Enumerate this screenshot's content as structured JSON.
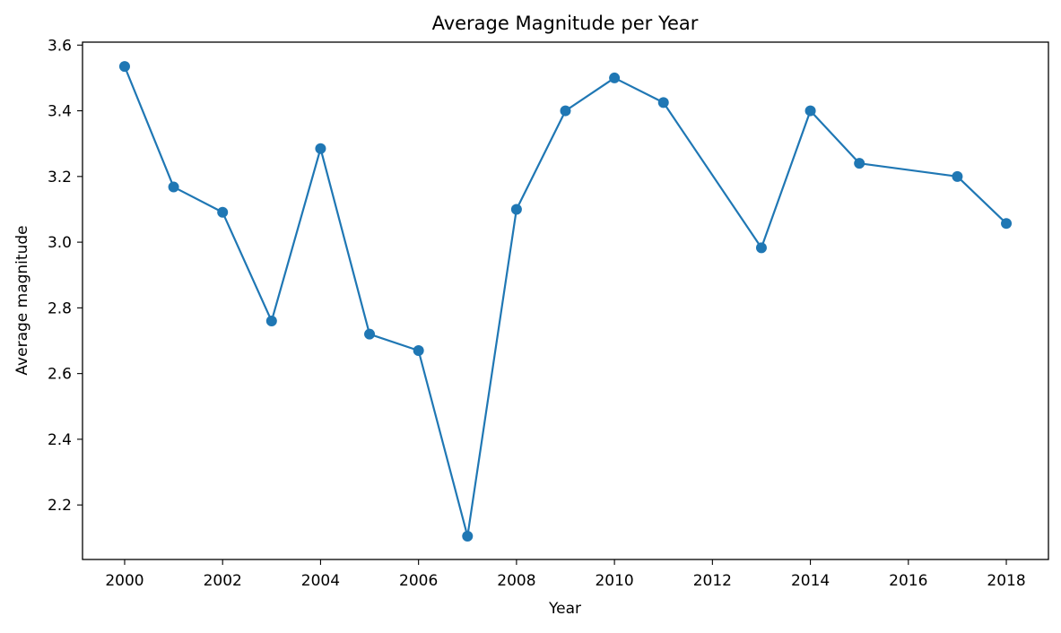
{
  "chart_data": {
    "type": "line",
    "title": "Average Magnitude per Year",
    "xlabel": "Year",
    "ylabel": "Average magnitude",
    "xlim": [
      1999.14,
      2018.86
    ],
    "ylim": [
      2.034,
      3.609
    ],
    "x_ticks": [
      2000,
      2002,
      2004,
      2006,
      2008,
      2010,
      2012,
      2014,
      2016,
      2018
    ],
    "y_ticks": [
      2.2,
      2.4,
      2.6,
      2.8,
      3.0,
      3.2,
      3.4,
      3.6
    ],
    "grid": false,
    "legend": "none",
    "series": [
      {
        "color": "#1f77b4",
        "marker": "circle",
        "points": [
          {
            "x": 2000,
            "y": 3.535
          },
          {
            "x": 2001,
            "y": 3.168
          },
          {
            "x": 2002,
            "y": 3.091
          },
          {
            "x": 2003,
            "y": 2.76
          },
          {
            "x": 2004,
            "y": 3.285
          },
          {
            "x": 2005,
            "y": 2.72
          },
          {
            "x": 2006,
            "y": 2.67
          },
          {
            "x": 2007,
            "y": 2.105
          },
          {
            "x": 2008,
            "y": 3.1
          },
          {
            "x": 2009,
            "y": 3.4
          },
          {
            "x": 2010,
            "y": 3.5
          },
          {
            "x": 2011,
            "y": 3.425
          },
          {
            "x": 2013,
            "y": 2.983
          },
          {
            "x": 2014,
            "y": 3.4
          },
          {
            "x": 2015,
            "y": 3.24
          },
          {
            "x": 2017,
            "y": 3.2
          },
          {
            "x": 2018,
            "y": 3.057
          }
        ]
      }
    ]
  }
}
